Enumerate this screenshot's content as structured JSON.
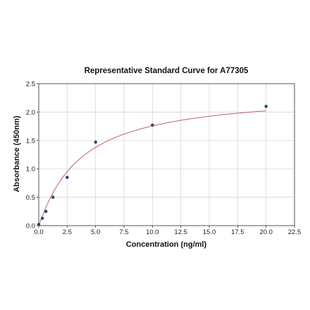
{
  "chart_data": {
    "type": "scatter",
    "title": "Representative Standard Curve for A77305",
    "xlabel": "Concentration (ng/ml)",
    "ylabel": "Absorbance (450nm)",
    "xlim": [
      0,
      22.5
    ],
    "ylim": [
      0,
      2.5
    ],
    "x_ticks": [
      0.0,
      2.5,
      5.0,
      7.5,
      10.0,
      12.5,
      15.0,
      17.5,
      20.0,
      22.5
    ],
    "x_tick_labels": [
      "0.0",
      "2.5",
      "5.0",
      "7.5",
      "10.0",
      "12.5",
      "15.0",
      "17.5",
      "20.0",
      "22.5"
    ],
    "y_ticks": [
      0.0,
      0.5,
      1.0,
      1.5,
      2.0,
      2.5
    ],
    "y_tick_labels": [
      "0.0",
      "0.5",
      "1.0",
      "1.5",
      "2.0",
      "2.5"
    ],
    "grid": true,
    "series": [
      {
        "points": [
          {
            "x": 0.0,
            "y": 0.02
          },
          {
            "x": 0.3125,
            "y": 0.13
          },
          {
            "x": 0.625,
            "y": 0.25
          },
          {
            "x": 1.25,
            "y": 0.5
          },
          {
            "x": 2.5,
            "y": 0.85
          },
          {
            "x": 5.0,
            "y": 1.47
          },
          {
            "x": 10.0,
            "y": 1.77
          },
          {
            "x": 20.0,
            "y": 2.1
          }
        ],
        "color": "#2c4a7a"
      }
    ],
    "fit_curve": {
      "model": "four-parameter logistic",
      "a": 0.0,
      "b": 1.06,
      "c": 3.6,
      "d": 2.35,
      "color": "#c06070"
    }
  }
}
